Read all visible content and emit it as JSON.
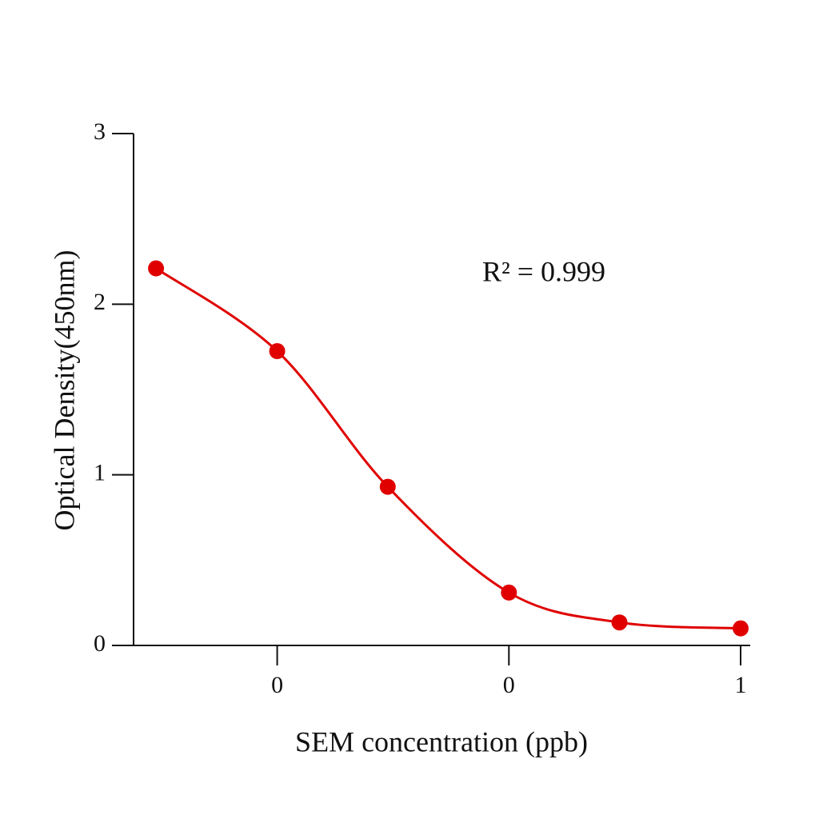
{
  "chart_data": {
    "type": "line",
    "x_label": "SEM concentration (ppb)",
    "y_label": "Optical Density(450nm)",
    "annotation": "R² = 0.999",
    "xscale": "log",
    "x": [
      0.003,
      0.01,
      0.03,
      0.1,
      0.3,
      1
    ],
    "series": [
      {
        "color": "#e00000",
        "values": [
          2.21,
          1.725,
          0.93,
          0.31,
          0.135,
          0.1
        ]
      }
    ],
    "xlim": [
      0.0024,
      1.1
    ],
    "xticks": [
      {
        "value": 0.01,
        "label": "0"
      },
      {
        "value": 0.1,
        "label": "0"
      },
      {
        "value": 1,
        "label": "1"
      }
    ],
    "ylim": [
      0,
      3
    ],
    "yticks": [
      0,
      1,
      2,
      3
    ],
    "grid": false
  }
}
